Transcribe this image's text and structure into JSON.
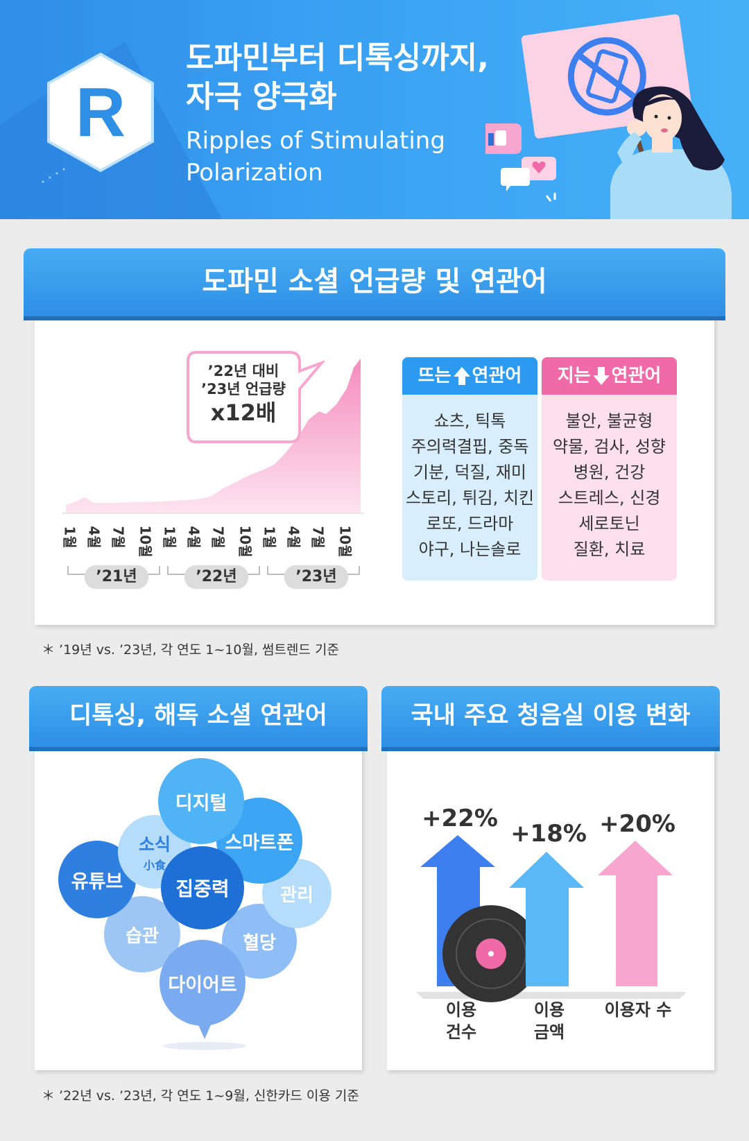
{
  "header": {
    "title_line1": "도파민부터 디톡싱까지,",
    "title_line2": "자극 양극화",
    "subtitle_line1": "Ripples of Stimulating",
    "subtitle_line2": "Polarization",
    "logo_letter": "R"
  },
  "section1": {
    "title": "도파민 소셜 언급량 및 연관어",
    "callout_line1": "’22년 대비",
    "callout_line2": "’23년 언급량",
    "callout_value": "x12배",
    "months": [
      "1월",
      "4월",
      "7월",
      "10월",
      "1월",
      "4월",
      "7월",
      "10월",
      "1월",
      "4월",
      "7월",
      "10월"
    ],
    "years": [
      "’21년",
      "’22년",
      "’23년"
    ],
    "rising": {
      "label_pre": "뜨는",
      "label_post": "연관어",
      "items": [
        "쇼츠, 틱톡",
        "주의력결핍, 중독",
        "기분, 덕질, 재미",
        "스토리, 튀김, 치킨",
        "로또, 드라마",
        "야구, 나는솔로"
      ]
    },
    "falling": {
      "label_pre": "지는",
      "label_post": "연관어",
      "items": [
        "불안, 불균형",
        "약물, 검사, 성향",
        "병원, 건강",
        "스트레스, 신경",
        "세로토닌",
        "질환, 치료"
      ]
    },
    "note": "＊ ’19년 vs. ’23년, 각 연도 1~10월, 썸트렌드 기준"
  },
  "section2": {
    "title": "디톡싱, 해독 소셜 연관어",
    "bubbles": {
      "digital": "디지털",
      "snack": "소식",
      "snack_hanja": "小食",
      "smartphone": "스마트폰",
      "youtube": "유튜브",
      "focus": "집중력",
      "manage": "관리",
      "habit": "습관",
      "bloodsugar": "혈당",
      "diet": "다이어트"
    }
  },
  "section3": {
    "title": "국내 주요 청음실 이용 변화",
    "bars": [
      {
        "label_line1": "이용",
        "label_line2": "건수",
        "value": "+22%",
        "color": "#3e7ff0"
      },
      {
        "label_line1": "이용",
        "label_line2": "금액",
        "value": "+18%",
        "color": "#5ab8f7"
      },
      {
        "label_line1": "이용자 수",
        "label_line2": "",
        "value": "+20%",
        "color": "#f7a6cf"
      }
    ],
    "note": "＊ ’22년 vs. ’23년, 각 연도 1~9월, 신한카드 이용 기준"
  },
  "colors": {
    "brand_blue": "#3aa1f3",
    "rising_blue": "#2b9af0",
    "falling_pink": "#f06aa8",
    "area_pink": "#f58bbf"
  },
  "icons": [
    "r-logo-icon",
    "no-phone-sign-icon",
    "thumbs-up-icon",
    "heart-chat-icon",
    "chat-bubble-icon",
    "up-arrow-icon",
    "down-arrow-icon",
    "vinyl-record-icon"
  ]
}
